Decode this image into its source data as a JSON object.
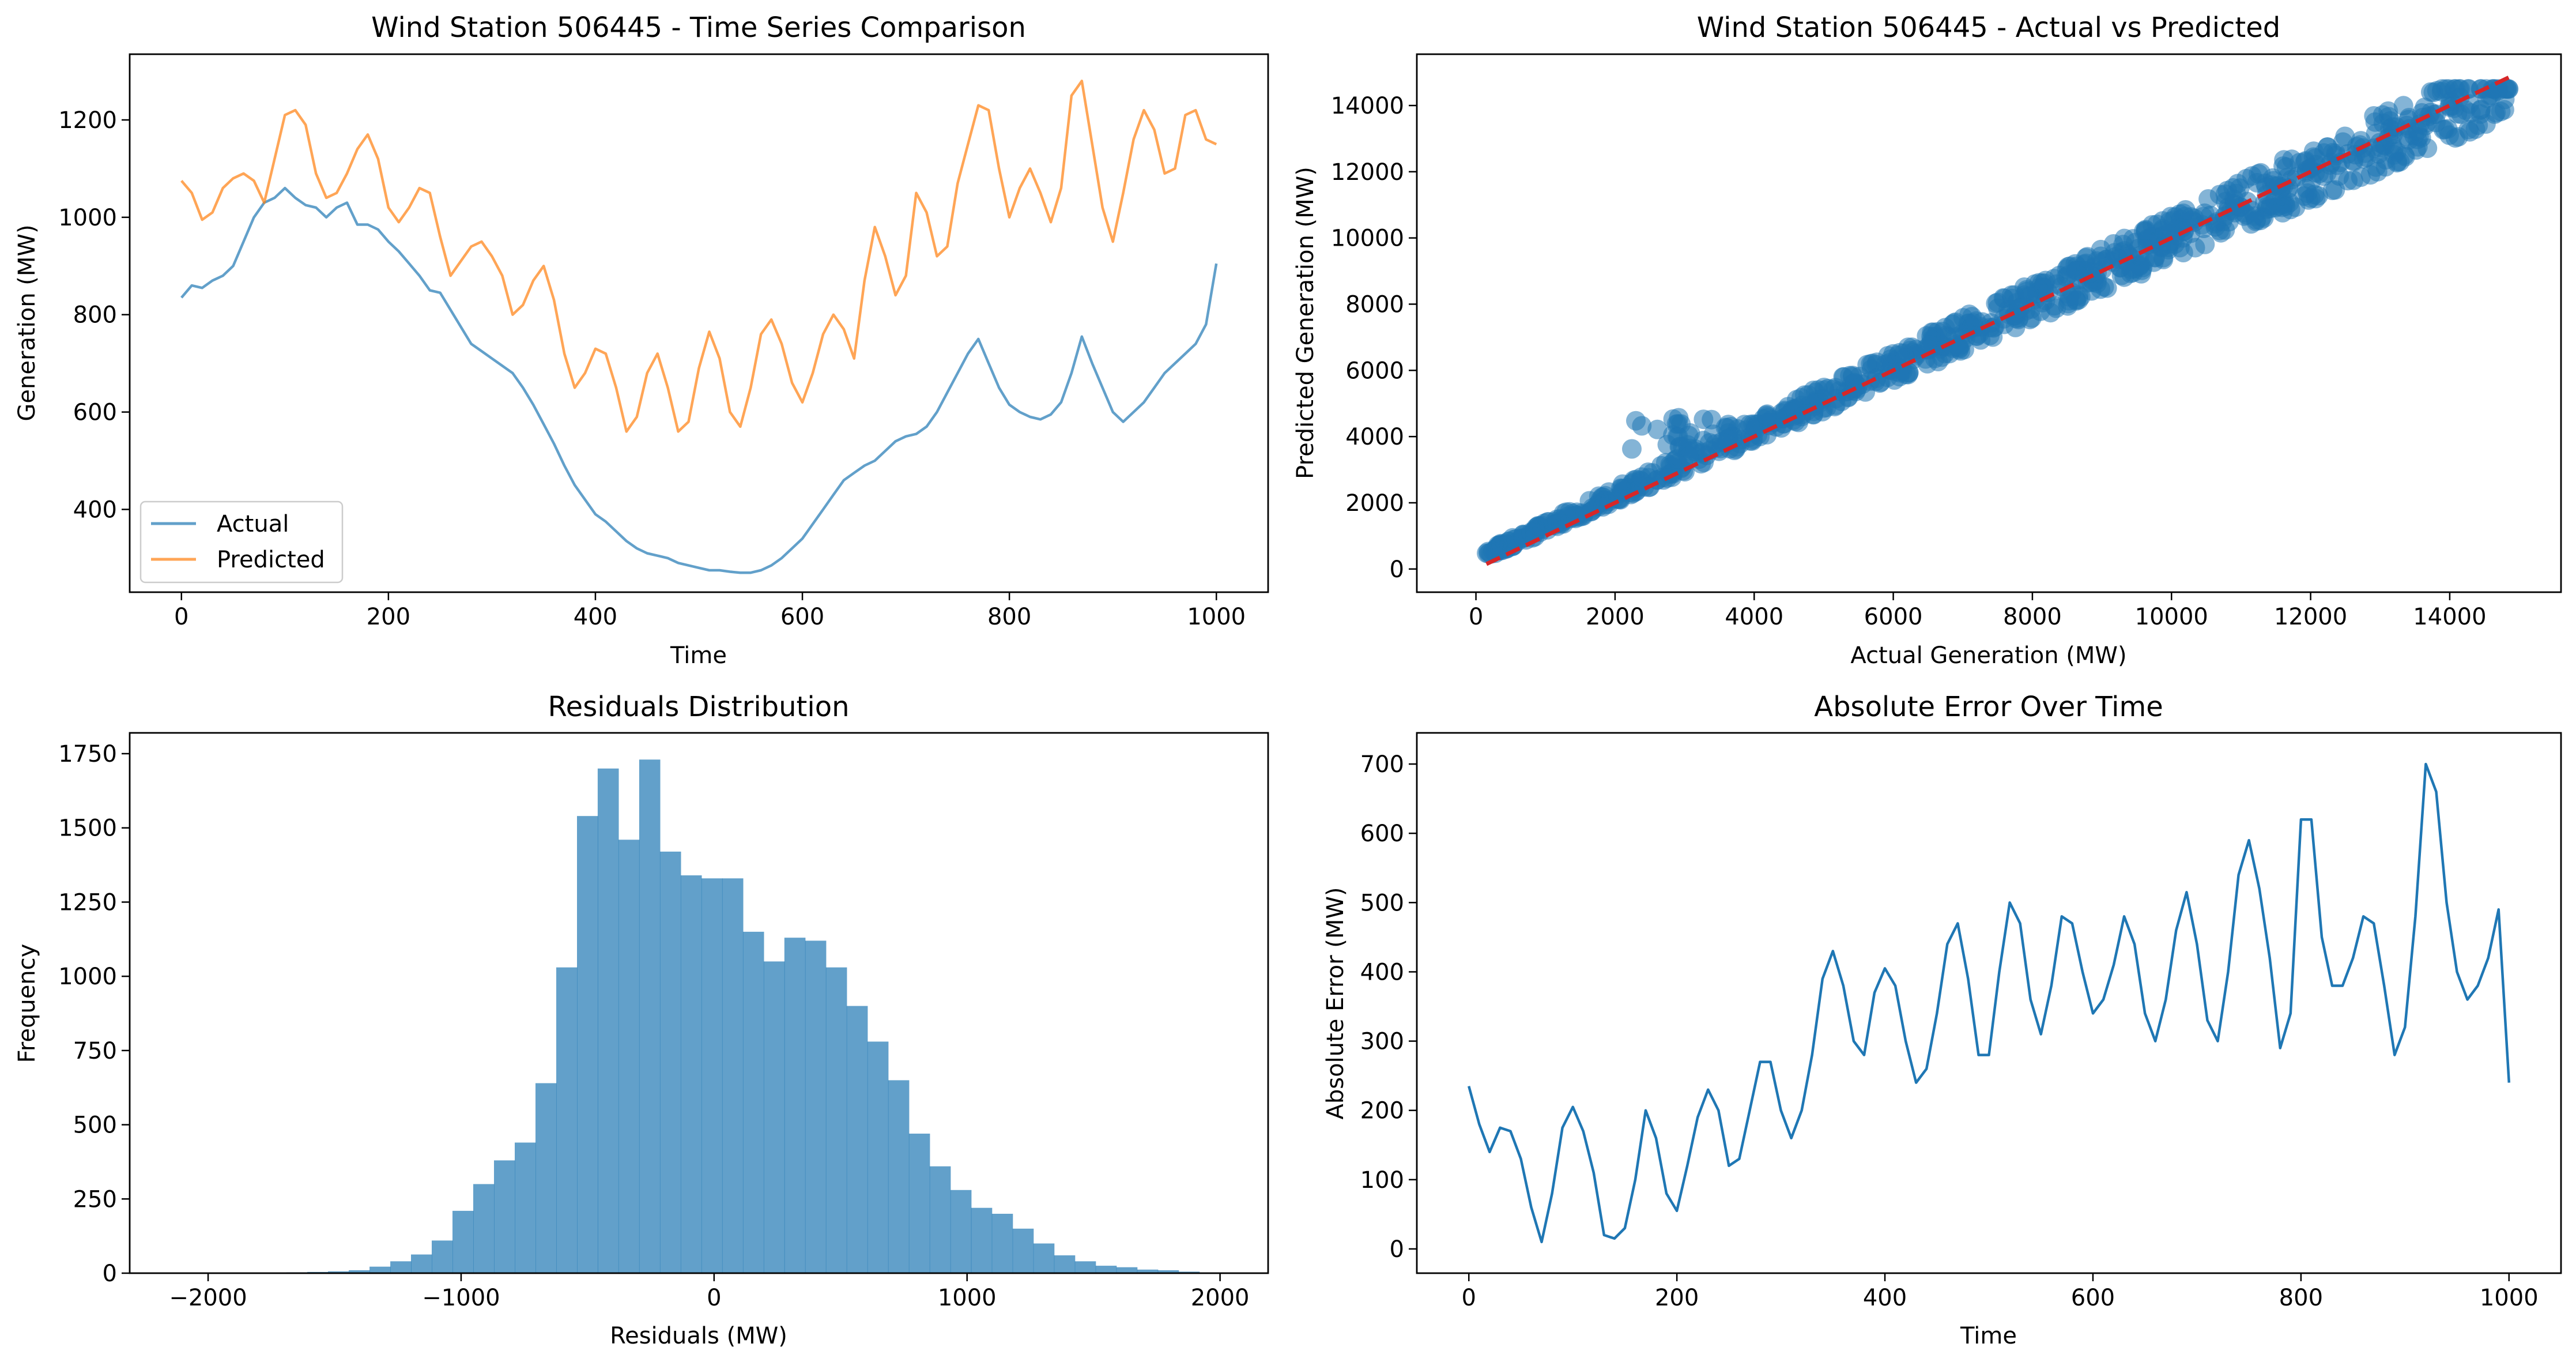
{
  "colors": {
    "actual": "#1f77b4",
    "predicted": "#ff7f0e",
    "ideal": "#d62728",
    "hist": "#1f77b4"
  },
  "chart_data": [
    {
      "type": "line",
      "title": "Wind Station 506445 - Time Series Comparison",
      "xlabel": "Time",
      "ylabel": "Generation (MW)",
      "xlim": [
        -50,
        1050
      ],
      "ylim": [
        230,
        1335
      ],
      "xticks": [
        "0",
        "200",
        "400",
        "600",
        "800",
        "1000"
      ],
      "yticks": [
        "400",
        "600",
        "800",
        "1000",
        "1200"
      ],
      "legend": {
        "position": "lower-left",
        "entries": [
          "Actual",
          "Predicted"
        ]
      },
      "grid": false,
      "series": [
        {
          "name": "Actual",
          "x": [
            0,
            10,
            20,
            30,
            40,
            50,
            60,
            70,
            80,
            90,
            100,
            110,
            120,
            130,
            140,
            150,
            160,
            170,
            180,
            190,
            200,
            210,
            220,
            230,
            240,
            250,
            260,
            270,
            280,
            290,
            300,
            310,
            320,
            330,
            340,
            350,
            360,
            370,
            380,
            390,
            400,
            410,
            420,
            430,
            440,
            450,
            460,
            470,
            480,
            490,
            500,
            510,
            520,
            530,
            540,
            550,
            560,
            570,
            580,
            590,
            600,
            610,
            620,
            630,
            640,
            650,
            660,
            670,
            680,
            690,
            700,
            710,
            720,
            730,
            740,
            750,
            760,
            770,
            780,
            790,
            800,
            810,
            820,
            830,
            840,
            850,
            860,
            870,
            880,
            890,
            900,
            910,
            920,
            930,
            940,
            950,
            960,
            970,
            980,
            990,
            1000
          ],
          "y": [
            835,
            860,
            855,
            870,
            880,
            900,
            950,
            1000,
            1030,
            1040,
            1060,
            1040,
            1025,
            1020,
            1000,
            1020,
            1030,
            985,
            985,
            975,
            950,
            930,
            905,
            880,
            850,
            845,
            810,
            775,
            740,
            725,
            710,
            695,
            680,
            650,
            615,
            575,
            535,
            490,
            450,
            420,
            390,
            375,
            355,
            335,
            320,
            310,
            305,
            300,
            290,
            285,
            280,
            275,
            275,
            272,
            270,
            270,
            275,
            285,
            300,
            320,
            340,
            370,
            400,
            430,
            460,
            475,
            490,
            500,
            520,
            540,
            550,
            555,
            570,
            600,
            640,
            680,
            720,
            750,
            700,
            650,
            615,
            600,
            590,
            585,
            595,
            620,
            680,
            755,
            700,
            650,
            600,
            580,
            600,
            620,
            650,
            680,
            700,
            720,
            740,
            780,
            905
          ]
        },
        {
          "name": "Predicted",
          "x": [
            0,
            10,
            20,
            30,
            40,
            50,
            60,
            70,
            80,
            90,
            100,
            110,
            120,
            130,
            140,
            150,
            160,
            170,
            180,
            190,
            200,
            210,
            220,
            230,
            240,
            250,
            260,
            270,
            280,
            290,
            300,
            310,
            320,
            330,
            340,
            350,
            360,
            370,
            380,
            390,
            400,
            410,
            420,
            430,
            440,
            450,
            460,
            470,
            480,
            490,
            500,
            510,
            520,
            530,
            540,
            550,
            560,
            570,
            580,
            590,
            600,
            610,
            620,
            630,
            640,
            650,
            660,
            670,
            680,
            690,
            700,
            710,
            720,
            730,
            740,
            750,
            760,
            770,
            780,
            790,
            800,
            810,
            820,
            830,
            840,
            850,
            860,
            870,
            880,
            890,
            900,
            910,
            920,
            930,
            940,
            950,
            960,
            970,
            980,
            990,
            1000
          ],
          "y": [
            1075,
            1050,
            995,
            1010,
            1060,
            1080,
            1090,
            1075,
            1030,
            1120,
            1210,
            1220,
            1190,
            1090,
            1040,
            1050,
            1090,
            1140,
            1170,
            1120,
            1020,
            990,
            1020,
            1060,
            1050,
            960,
            880,
            910,
            940,
            950,
            920,
            880,
            800,
            820,
            870,
            900,
            830,
            720,
            650,
            680,
            730,
            720,
            650,
            560,
            590,
            680,
            720,
            650,
            560,
            580,
            690,
            765,
            710,
            600,
            570,
            650,
            760,
            790,
            740,
            660,
            620,
            680,
            760,
            800,
            770,
            710,
            870,
            980,
            920,
            840,
            880,
            1050,
            1010,
            920,
            940,
            1070,
            1150,
            1230,
            1220,
            1100,
            1000,
            1060,
            1100,
            1050,
            990,
            1060,
            1250,
            1280,
            1150,
            1020,
            950,
            1050,
            1160,
            1220,
            1180,
            1090,
            1100,
            1210,
            1220,
            1160,
            1150
          ]
        }
      ]
    },
    {
      "type": "scatter",
      "title": "Wind Station 506445 - Actual vs Predicted",
      "xlabel": "Actual Generation (MW)",
      "ylabel": "Predicted Generation (MW)",
      "xlim": [
        -850,
        15600
      ],
      "ylim": [
        -700,
        15550
      ],
      "xticks": [
        "0",
        "2000",
        "4000",
        "6000",
        "8000",
        "10000",
        "12000",
        "14000"
      ],
      "yticks": [
        "0",
        "2000",
        "4000",
        "6000",
        "8000",
        "10000",
        "12000",
        "14000"
      ],
      "grid": false,
      "ideal_line": {
        "from": [
          150,
          150
        ],
        "to": [
          14850,
          14850
        ]
      },
      "point_count": 900
    },
    {
      "type": "bar",
      "title": "Residuals Distribution",
      "xlabel": "Residuals (MW)",
      "ylabel": "Frequency",
      "xlim": [
        -2310,
        2190
      ],
      "ylim": [
        0,
        1820
      ],
      "xticks": [
        "−2000",
        "−1000",
        "0",
        "1000",
        "2000"
      ],
      "yticks": [
        "0",
        "250",
        "500",
        "750",
        "1000",
        "1250",
        "1500",
        "1750"
      ],
      "grid": false,
      "bin_start": -2100,
      "bin_width": 82,
      "counts": [
        2,
        1,
        1,
        1,
        2,
        3,
        4,
        6,
        10,
        22,
        40,
        63,
        110,
        210,
        300,
        380,
        440,
        640,
        1030,
        1540,
        1700,
        1460,
        1730,
        1420,
        1340,
        1330,
        1330,
        1150,
        1050,
        1130,
        1120,
        1030,
        900,
        780,
        650,
        470,
        360,
        280,
        220,
        200,
        150,
        100,
        60,
        40,
        25,
        20,
        12,
        10,
        5,
        2,
        1,
        1
      ]
    },
    {
      "type": "line",
      "title": "Absolute Error Over Time",
      "xlabel": "Time",
      "ylabel": "Absolute Error (MW)",
      "xlim": [
        -50,
        1050
      ],
      "ylim": [
        -35,
        745
      ],
      "xticks": [
        "0",
        "200",
        "400",
        "600",
        "800",
        "1000"
      ],
      "yticks": [
        "0",
        "100",
        "200",
        "300",
        "400",
        "500",
        "600",
        "700"
      ],
      "grid": false,
      "series": [
        {
          "x": [
            0,
            10,
            20,
            30,
            40,
            50,
            60,
            70,
            80,
            90,
            100,
            110,
            120,
            130,
            140,
            150,
            160,
            170,
            180,
            190,
            200,
            210,
            220,
            230,
            240,
            250,
            260,
            270,
            280,
            290,
            300,
            310,
            320,
            330,
            340,
            350,
            360,
            370,
            380,
            390,
            400,
            410,
            420,
            430,
            440,
            450,
            460,
            470,
            480,
            490,
            500,
            510,
            520,
            530,
            540,
            550,
            560,
            570,
            580,
            590,
            600,
            610,
            620,
            630,
            640,
            650,
            660,
            670,
            680,
            690,
            700,
            710,
            720,
            730,
            740,
            750,
            760,
            770,
            780,
            790,
            800,
            810,
            820,
            830,
            840,
            850,
            860,
            870,
            880,
            890,
            900,
            910,
            920,
            930,
            940,
            950,
            960,
            970,
            980,
            990,
            1000
          ],
          "y": [
            235,
            180,
            140,
            175,
            170,
            130,
            60,
            10,
            80,
            175,
            205,
            170,
            110,
            20,
            15,
            30,
            100,
            200,
            160,
            80,
            55,
            120,
            190,
            230,
            200,
            120,
            130,
            200,
            270,
            270,
            200,
            160,
            200,
            280,
            390,
            430,
            380,
            300,
            280,
            370,
            405,
            380,
            300,
            240,
            260,
            340,
            440,
            470,
            390,
            280,
            280,
            400,
            500,
            470,
            360,
            310,
            380,
            480,
            470,
            400,
            340,
            360,
            410,
            480,
            440,
            340,
            300,
            360,
            460,
            515,
            440,
            330,
            300,
            400,
            540,
            590,
            520,
            420,
            290,
            340,
            620,
            620,
            450,
            380,
            380,
            420,
            480,
            470,
            380,
            280,
            320,
            480,
            700,
            660,
            500,
            400,
            360,
            380,
            420,
            490,
            240
          ]
        }
      ]
    }
  ]
}
